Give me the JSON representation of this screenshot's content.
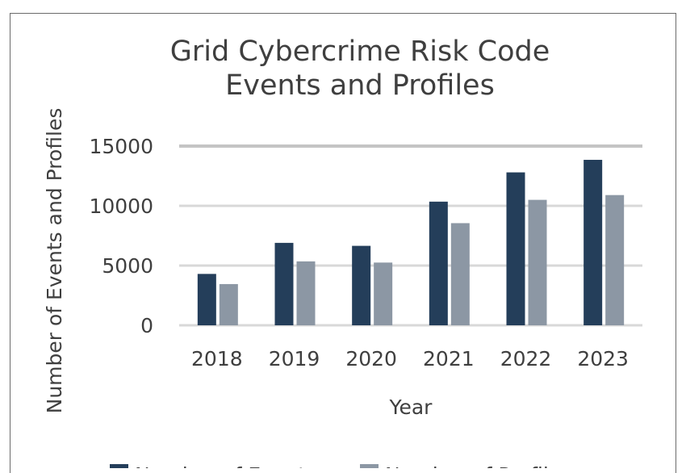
{
  "chart_data": {
    "type": "bar",
    "title": [
      "Grid Cybercrime Risk Code",
      "Events and Profiles"
    ],
    "xlabel": "Year",
    "ylabel": "Number of Events and Profiles",
    "categories": [
      "2018",
      "2019",
      "2020",
      "2021",
      "2022",
      "2023"
    ],
    "series": [
      {
        "name": "Number of Events",
        "values": [
          4300,
          6900,
          6650,
          10350,
          12800,
          13850
        ],
        "color": "#243e5a"
      },
      {
        "name": "Number of Profiles",
        "values": [
          3450,
          5350,
          5250,
          8550,
          10500,
          10900
        ],
        "color": "#8c97a4"
      }
    ],
    "ylim": [
      0,
      15000
    ],
    "yticks": [
      0,
      5000,
      10000,
      15000
    ],
    "grid": true,
    "legend_position": "bottom"
  }
}
